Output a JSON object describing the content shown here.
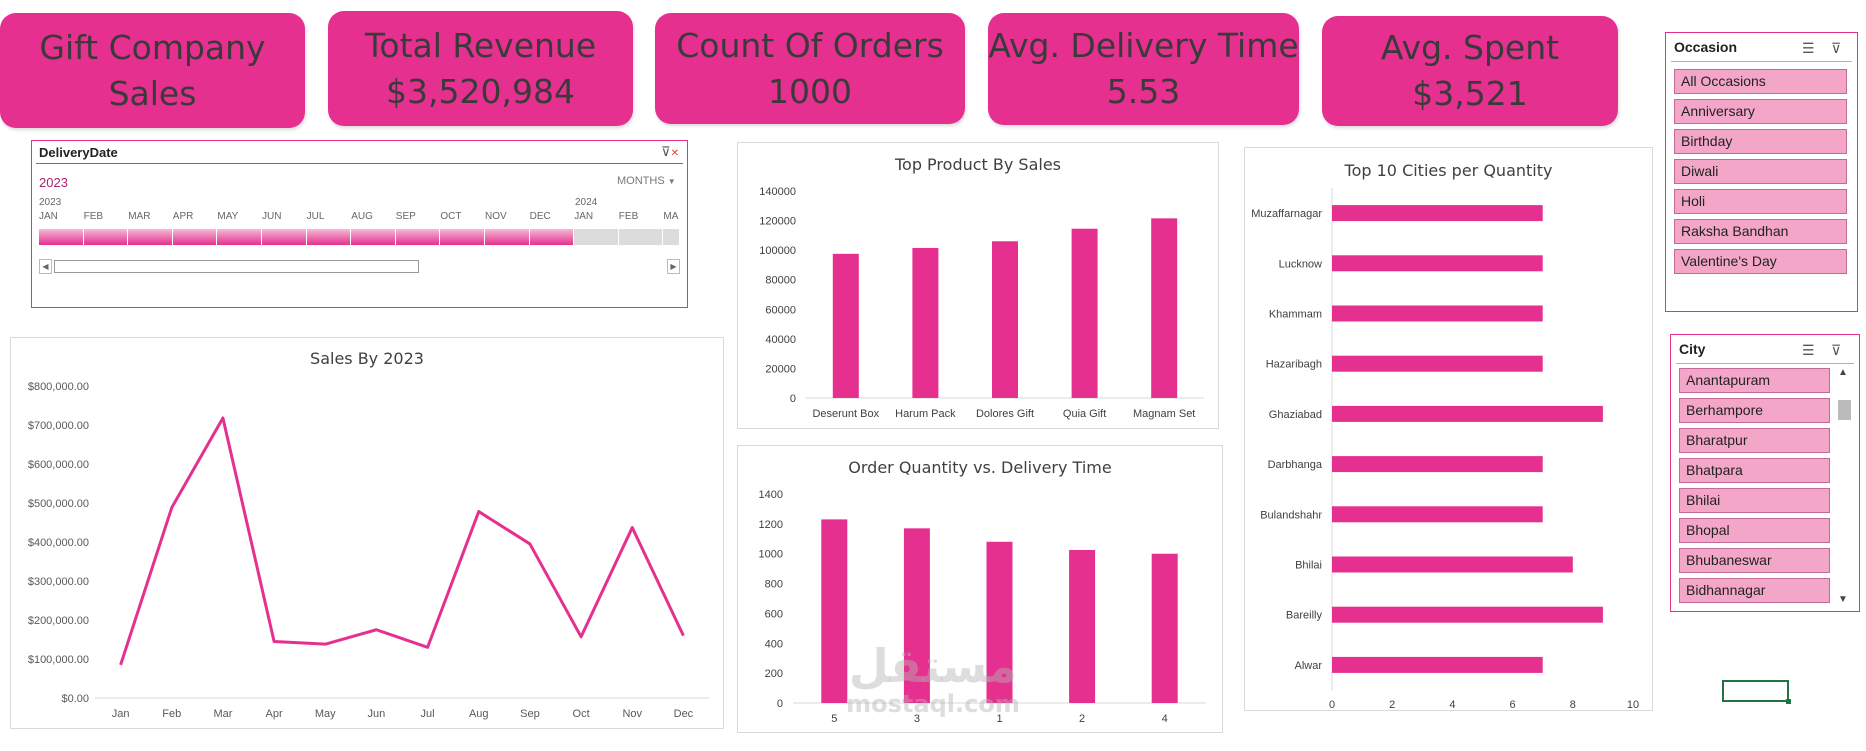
{
  "kpis": {
    "title_line1": "Gift Company",
    "title_line2": "Sales",
    "revenue_label": "Total Revenue",
    "revenue_value": "$3,520,984",
    "orders_label": "Count Of Orders",
    "orders_value": "1000",
    "delivery_label": "Avg. Delivery Time",
    "delivery_value": "5.53",
    "spent_label": "Avg. Spent",
    "spent_value": "$3,521"
  },
  "timeline": {
    "header": "DeliveryDate",
    "selected_year": "2023",
    "level": "MONTHS",
    "year_2023": "2023",
    "year_2024": "2024",
    "months": [
      "JAN",
      "FEB",
      "MAR",
      "APR",
      "MAY",
      "JUN",
      "JUL",
      "AUG",
      "SEP",
      "OCT",
      "NOV",
      "DEC",
      "JAN",
      "FEB",
      "MA"
    ],
    "selected_count": 12
  },
  "occasion_slicer": {
    "header": "Occasion",
    "items": [
      "All Occasions",
      "Anniversary",
      "Birthday",
      "Diwali",
      "Holi",
      "Raksha Bandhan",
      "Valentine's Day"
    ]
  },
  "city_slicer": {
    "header": "City",
    "items": [
      "Anantapuram",
      "Berhampore",
      "Bharatpur",
      "Bhatpara",
      "Bhilai",
      "Bhopal",
      "Bhubaneswar",
      "Bidhannagar"
    ]
  },
  "watermark": {
    "arabic": "مستقل",
    "latin": "mostaql.com"
  },
  "colors": {
    "accent": "#e5308f",
    "slicer_item": "#f4a6c9",
    "text": "#404040"
  },
  "chart_data": [
    {
      "id": "sales_2023",
      "type": "line",
      "title": "Sales By 2023",
      "categories": [
        "Jan",
        "Feb",
        "Mar",
        "Apr",
        "May",
        "Jun",
        "Jul",
        "Aug",
        "Sep",
        "Oct",
        "Nov",
        "Dec"
      ],
      "values": [
        85000,
        488000,
        718000,
        145000,
        138000,
        175000,
        130000,
        478000,
        395000,
        157000,
        437000,
        160000
      ],
      "ylim": [
        0,
        800000
      ],
      "yticks": [
        "$0.00",
        "$100,000.00",
        "$200,000.00",
        "$300,000.00",
        "$400,000.00",
        "$500,000.00",
        "$600,000.00",
        "$700,000.00",
        "$800,000.00"
      ]
    },
    {
      "id": "top_product",
      "type": "bar",
      "title": "Top Product By Sales",
      "categories": [
        "Deserunt Box",
        "Harum Pack",
        "Dolores Gift",
        "Quia Gift",
        "Magnam Set"
      ],
      "values": [
        97500,
        101500,
        106000,
        114500,
        121500
      ],
      "ylim": [
        0,
        140000
      ],
      "yticks": [
        "0",
        "20000",
        "40000",
        "60000",
        "80000",
        "100000",
        "120000",
        "140000"
      ]
    },
    {
      "id": "qty_vs_delivery",
      "type": "bar",
      "title": "Order Quantity vs. Delivery Time",
      "categories": [
        "5",
        "3",
        "1",
        "2",
        "4"
      ],
      "values": [
        1230,
        1170,
        1080,
        1025,
        1000
      ],
      "ylim": [
        0,
        1400
      ],
      "yticks": [
        "0",
        "200",
        "400",
        "600",
        "800",
        "1000",
        "1200",
        "1400"
      ]
    },
    {
      "id": "top_cities",
      "type": "bar",
      "orientation": "horizontal",
      "title": "Top 10 Cities per Quantity",
      "categories": [
        "Muzaffarnagar",
        "Lucknow",
        "Khammam",
        "Hazaribagh",
        "Ghaziabad",
        "Darbhanga",
        "Bulandshahr",
        "Bhilai",
        "Bareilly",
        "Alwar"
      ],
      "values": [
        7,
        7,
        7,
        7,
        9,
        7,
        7,
        8,
        9,
        7
      ],
      "xlim": [
        0,
        10
      ],
      "xticks": [
        "0",
        "2",
        "4",
        "6",
        "8",
        "10"
      ]
    }
  ]
}
